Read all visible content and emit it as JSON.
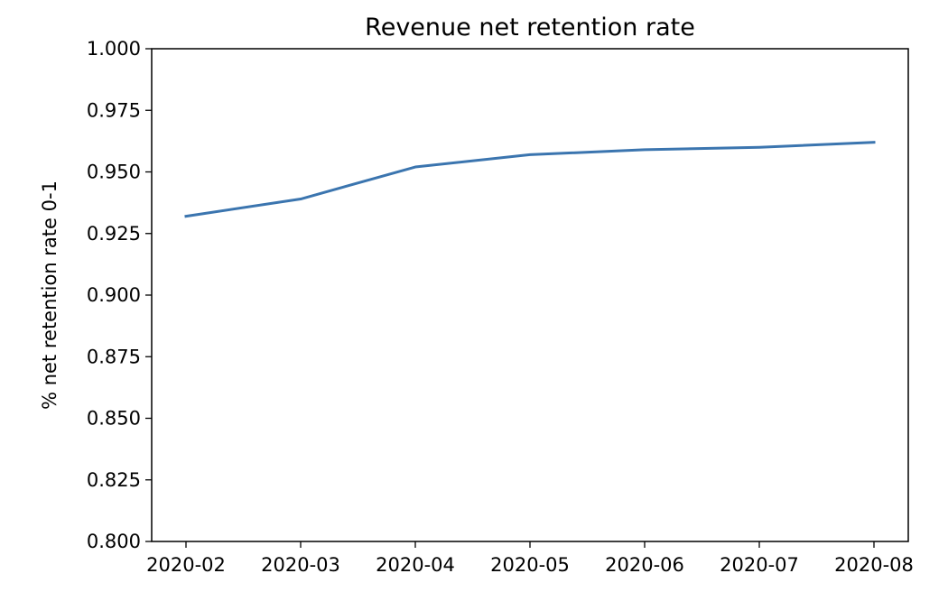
{
  "chart_data": {
    "type": "line",
    "title": "Revenue net retention rate",
    "xlabel": "",
    "ylabel": "% net retention rate 0-1",
    "categories": [
      "2020-02",
      "2020-03",
      "2020-04",
      "2020-05",
      "2020-06",
      "2020-07",
      "2020-08"
    ],
    "series": [
      {
        "values": [
          0.932,
          0.939,
          0.952,
          0.957,
          0.959,
          0.96,
          0.962
        ],
        "color": "#3b75af"
      }
    ],
    "ylim": [
      0.8,
      1.0
    ],
    "yticks": [
      "0.800",
      "0.825",
      "0.850",
      "0.875",
      "0.900",
      "0.925",
      "0.950",
      "0.975",
      "1.000"
    ],
    "grid": false,
    "legend": "none"
  }
}
